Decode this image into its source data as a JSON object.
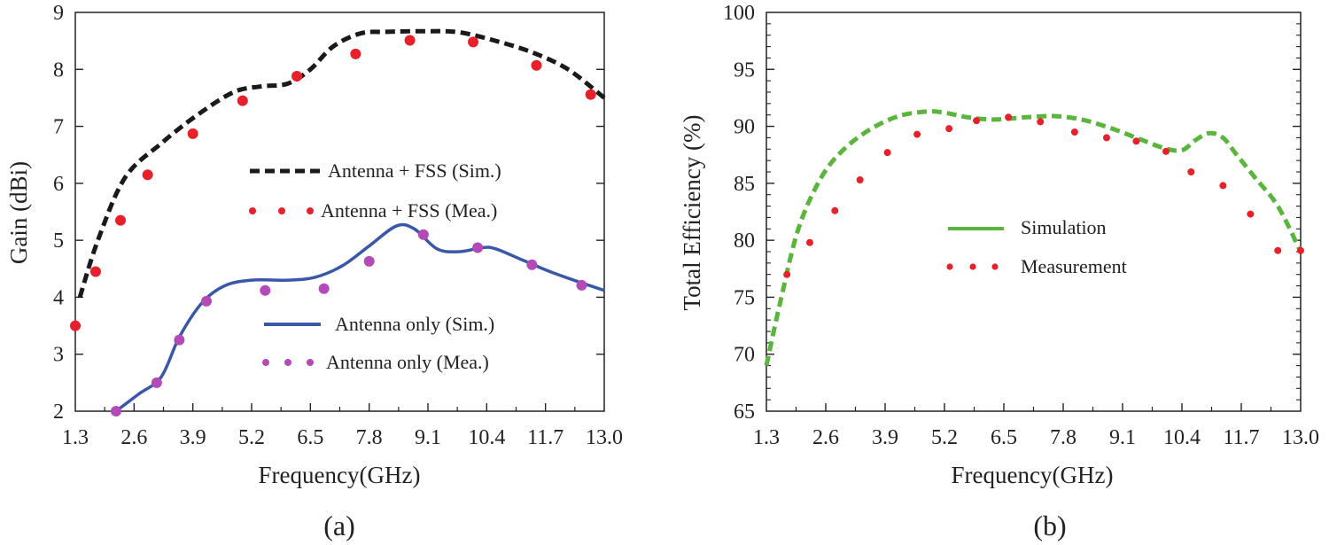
{
  "chart_data": [
    {
      "type": "line",
      "panel_label": "(a)",
      "xlabel": "Frequency(GHz)",
      "ylabel": "Gain (dBi)",
      "xlim": [
        1.3,
        13.0
      ],
      "ylim": [
        2,
        9
      ],
      "xticks": [
        "1.3",
        "2.6",
        "3.9",
        "5.2",
        "6.5",
        "7.8",
        "9.1",
        "10.4",
        "11.7",
        "13.0"
      ],
      "yticks": [
        "2",
        "3",
        "4",
        "5",
        "6",
        "7",
        "8",
        "9"
      ],
      "series": [
        {
          "name": "Antenna + FSS (Sim.)",
          "style": "dashed",
          "color": "#1a1a1a",
          "x": [
            1.4,
            1.8,
            2.4,
            3.2,
            4.0,
            4.8,
            5.4,
            6.0,
            6.5,
            7.0,
            7.6,
            8.2,
            9.1,
            9.8,
            10.6,
            11.4,
            12.2,
            13.0
          ],
          "y": [
            4.0,
            5.0,
            6.1,
            6.7,
            7.2,
            7.6,
            7.7,
            7.75,
            8.0,
            8.4,
            8.63,
            8.66,
            8.67,
            8.65,
            8.5,
            8.3,
            8.0,
            7.5
          ]
        },
        {
          "name": "Antenna + FSS (Mea.)",
          "style": "markers",
          "color": "#e8202a",
          "x": [
            1.3,
            1.75,
            2.3,
            2.9,
            3.9,
            5.0,
            6.2,
            7.5,
            8.7,
            10.1,
            11.5,
            12.7
          ],
          "y": [
            3.5,
            4.45,
            5.35,
            6.15,
            6.87,
            7.45,
            7.88,
            8.27,
            8.51,
            8.48,
            8.07,
            7.56
          ]
        },
        {
          "name": "Antenna only (Sim.)",
          "style": "solid",
          "color": "#3a57a8",
          "x": [
            2.2,
            2.7,
            3.2,
            3.6,
            4.1,
            4.6,
            5.2,
            6.0,
            6.6,
            7.2,
            7.8,
            8.4,
            8.8,
            9.3,
            9.8,
            10.3,
            10.6,
            11.2,
            11.8,
            12.4,
            13.0
          ],
          "y": [
            2.0,
            2.3,
            2.6,
            3.3,
            3.9,
            4.2,
            4.3,
            4.3,
            4.35,
            4.55,
            4.9,
            5.25,
            5.2,
            4.85,
            4.8,
            4.87,
            4.85,
            4.65,
            4.45,
            4.28,
            4.12
          ]
        },
        {
          "name": "Antenna only (Mea.)",
          "style": "markers",
          "color": "#b34ab8",
          "x": [
            2.2,
            3.1,
            3.6,
            4.2,
            5.5,
            6.8,
            7.8,
            9.0,
            10.2,
            11.4,
            12.5
          ],
          "y": [
            2.0,
            2.5,
            3.25,
            3.93,
            4.12,
            4.15,
            4.63,
            5.1,
            4.87,
            4.57,
            4.21
          ]
        }
      ]
    },
    {
      "type": "line",
      "panel_label": "(b)",
      "xlabel": "Frequency(GHz)",
      "ylabel": "Total Efficiency (%)",
      "xlim": [
        1.3,
        13.0
      ],
      "ylim": [
        65,
        100
      ],
      "xticks": [
        "1.3",
        "2.6",
        "3.9",
        "5.2",
        "6.5",
        "7.8",
        "9.1",
        "10.4",
        "11.7",
        "13.0"
      ],
      "yticks": [
        "65",
        "70",
        "75",
        "80",
        "85",
        "90",
        "95",
        "100"
      ],
      "series": [
        {
          "name": "Simulation",
          "style": "dashed",
          "color": "#5ab53c",
          "x": [
            1.3,
            1.6,
            2.0,
            2.5,
            3.0,
            3.6,
            4.2,
            4.8,
            5.2,
            5.7,
            6.3,
            7.0,
            7.6,
            8.2,
            8.8,
            9.4,
            10.0,
            10.4,
            10.7,
            11.0,
            11.3,
            11.6,
            12.0,
            12.5,
            13.0
          ],
          "y": [
            69.0,
            74.5,
            81.0,
            85.5,
            88.0,
            89.8,
            90.9,
            91.3,
            91.2,
            90.8,
            90.6,
            90.8,
            90.9,
            90.6,
            89.9,
            89.0,
            88.1,
            87.9,
            88.8,
            89.4,
            89.0,
            87.5,
            85.5,
            83.0,
            79.0
          ]
        },
        {
          "name": "Measurement",
          "style": "markers",
          "color": "#e8202a",
          "x": [
            1.75,
            2.25,
            2.8,
            3.35,
            3.95,
            4.6,
            5.3,
            5.9,
            6.6,
            7.3,
            8.05,
            8.75,
            9.4,
            10.05,
            10.6,
            11.3,
            11.9,
            12.5,
            13.0
          ],
          "y": [
            77.0,
            79.8,
            82.6,
            85.3,
            87.7,
            89.3,
            89.8,
            90.5,
            90.8,
            90.4,
            89.5,
            89.0,
            88.7,
            87.8,
            86.0,
            84.8,
            82.3,
            79.1,
            79.1
          ]
        }
      ]
    }
  ]
}
